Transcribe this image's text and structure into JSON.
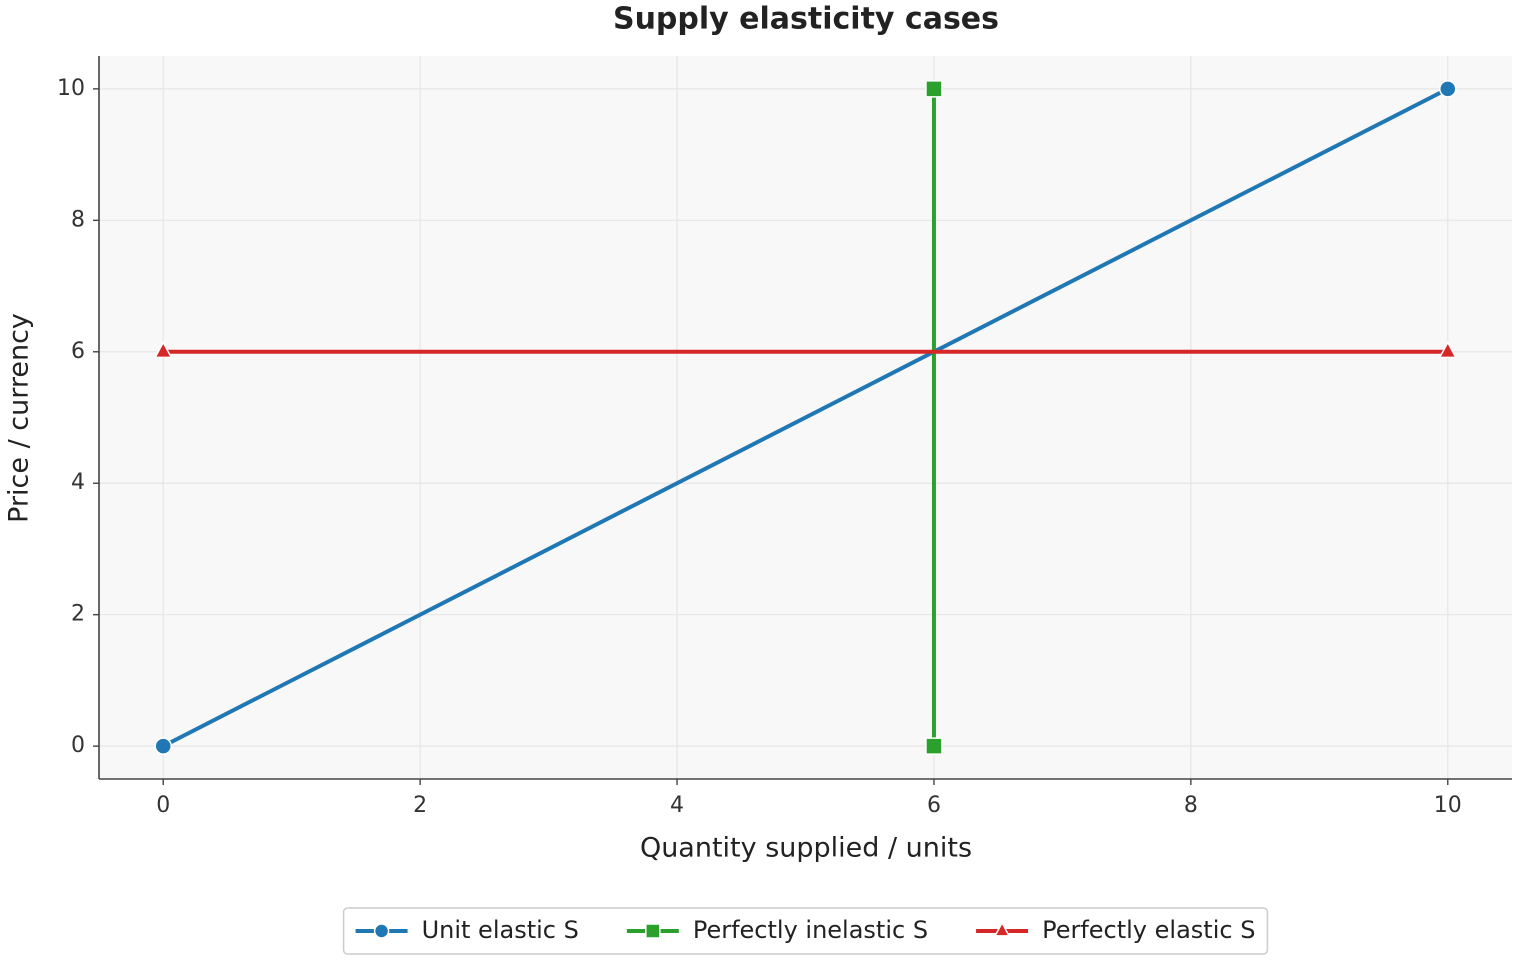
{
  "chart_data": {
    "type": "line",
    "title": "Supply elasticity cases",
    "x_label": "Quantity supplied / units",
    "y_label": "Price / currency",
    "series": [
      {
        "name": "Unit elastic S",
        "color": "#1f77b4",
        "marker": "circle",
        "x": [
          0,
          10
        ],
        "values": [
          0,
          10
        ]
      },
      {
        "name": "Perfectly inelastic S",
        "color": "#2ca02c",
        "marker": "square",
        "x": [
          6,
          6
        ],
        "values": [
          0,
          10
        ]
      },
      {
        "name": "Perfectly elastic S",
        "color": "#d62728",
        "marker": "triangle",
        "x": [
          0,
          10
        ],
        "values": [
          6,
          6
        ]
      }
    ],
    "xlim": [
      -0.5,
      10.5
    ],
    "ylim": [
      -0.5,
      10.5
    ],
    "xticks": [
      0,
      2,
      4,
      6,
      8,
      10
    ],
    "yticks": [
      0,
      2,
      4,
      6,
      8,
      10
    ],
    "grid": true,
    "legend": "bottom"
  }
}
